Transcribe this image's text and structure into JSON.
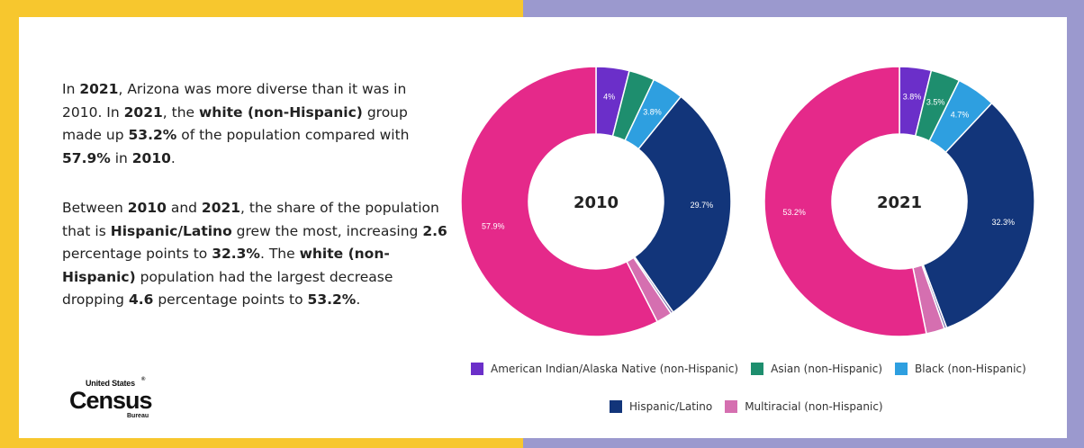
{
  "paragraphs": [
    [
      {
        "t": "In ",
        "b": false
      },
      {
        "t": "2021",
        "b": true
      },
      {
        "t": ", Arizona was more diverse than it was in 2010. In ",
        "b": false
      },
      {
        "t": "2021",
        "b": true
      },
      {
        "t": ", the ",
        "b": false
      },
      {
        "t": "white (non-Hispanic)",
        "b": true
      },
      {
        "t": " group made up ",
        "b": false
      },
      {
        "t": "53.2%",
        "b": true
      },
      {
        "t": " of the population compared with ",
        "b": false
      },
      {
        "t": "57.9%",
        "b": true
      },
      {
        "t": " in ",
        "b": false
      },
      {
        "t": "2010",
        "b": true
      },
      {
        "t": ".",
        "b": false
      }
    ],
    [
      {
        "t": "Between ",
        "b": false
      },
      {
        "t": "2010",
        "b": true
      },
      {
        "t": " and ",
        "b": false
      },
      {
        "t": "2021",
        "b": true
      },
      {
        "t": ", the share of the population that is ",
        "b": false
      },
      {
        "t": "Hispanic/Latino",
        "b": true
      },
      {
        "t": " grew the most, increasing ",
        "b": false
      },
      {
        "t": "2.6",
        "b": true
      },
      {
        "t": " percentage points to ",
        "b": false
      },
      {
        "t": "32.3%",
        "b": true
      },
      {
        "t": ". The ",
        "b": false
      },
      {
        "t": "white (non-Hispanic)",
        "b": true
      },
      {
        "t": " population had the largest decrease dropping ",
        "b": false
      },
      {
        "t": "4.6",
        "b": true
      },
      {
        "t": " percentage points to ",
        "b": false
      },
      {
        "t": "53.2%",
        "b": true
      },
      {
        "t": ".",
        "b": false
      }
    ]
  ],
  "logo": {
    "top": "United States",
    "mark": "®",
    "main": "Census",
    "bottom": "Bureau"
  },
  "frame_colors": {
    "yellow": "#F7C72E",
    "purple": "#9B99CE"
  },
  "chart_data": [
    {
      "type": "pie",
      "title": "2010",
      "slices": [
        {
          "name": "American Indian/Alaska Native (non-Hispanic)",
          "value": 4.0,
          "label": "4%",
          "color": "#6B2FC9"
        },
        {
          "name": "Asian (non-Hispanic)",
          "value": 3.1,
          "label": "",
          "color": "#1E8E6E"
        },
        {
          "name": "Black (non-Hispanic)",
          "value": 3.8,
          "label": "3.8%",
          "color": "#2E9FE0"
        },
        {
          "name": "Hispanic/Latino",
          "value": 29.7,
          "label": "29.7%",
          "color": "#12357A"
        },
        {
          "name": "",
          "value": 0.3,
          "label": "",
          "color": "#7A6FAE"
        },
        {
          "name": "Multiracial (non-Hispanic)",
          "value": 1.9,
          "label": "",
          "color": "#D56FB0"
        },
        {
          "name": "",
          "value": 57.9,
          "label": "57.9%",
          "color": "#E5298A"
        }
      ]
    },
    {
      "type": "pie",
      "title": "2021",
      "slices": [
        {
          "name": "American Indian/Alaska Native (non-Hispanic)",
          "value": 3.8,
          "label": "3.8%",
          "color": "#6B2FC9"
        },
        {
          "name": "Asian (non-Hispanic)",
          "value": 3.5,
          "label": "3.5%",
          "color": "#1E8E6E"
        },
        {
          "name": "Black (non-Hispanic)",
          "value": 4.7,
          "label": "4.7%",
          "color": "#2E9FE0"
        },
        {
          "name": "Hispanic/Latino",
          "value": 32.3,
          "label": "32.3%",
          "color": "#12357A"
        },
        {
          "name": "",
          "value": 0.3,
          "label": "",
          "color": "#7A6FAE"
        },
        {
          "name": "Multiracial (non-Hispanic)",
          "value": 2.2,
          "label": "",
          "color": "#D56FB0"
        },
        {
          "name": "",
          "value": 53.2,
          "label": "53.2%",
          "color": "#E5298A"
        }
      ]
    }
  ],
  "legend": [
    [
      {
        "label": "American Indian/Alaska Native (non-Hispanic)",
        "color": "#6B2FC9"
      },
      {
        "label": "Asian (non-Hispanic)",
        "color": "#1E8E6E"
      },
      {
        "label": "Black (non-Hispanic)",
        "color": "#2E9FE0"
      }
    ],
    [
      {
        "label": "Hispanic/Latino",
        "color": "#12357A"
      },
      {
        "label": "Multiracial (non-Hispanic)",
        "color": "#D56FB0"
      }
    ]
  ]
}
